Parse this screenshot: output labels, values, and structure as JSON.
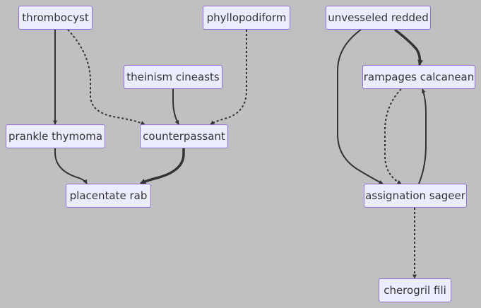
{
  "diagram": {
    "type": "flowchart",
    "nodes": [
      {
        "id": "thrombocyst",
        "label": "thrombocyst"
      },
      {
        "id": "phyllopodiform",
        "label": "phyllopodiform"
      },
      {
        "id": "theinism",
        "label": "theinism cineasts"
      },
      {
        "id": "prankle",
        "label": "prankle thymoma"
      },
      {
        "id": "counterpassant",
        "label": "counterpassant"
      },
      {
        "id": "placentate",
        "label": "placentate rab"
      },
      {
        "id": "unvesseled",
        "label": "unvesseled redded"
      },
      {
        "id": "rampages",
        "label": "rampages calcanean"
      },
      {
        "id": "assignation",
        "label": "assignation sageer"
      },
      {
        "id": "cherogril",
        "label": "cherogril fili"
      }
    ],
    "edges": [
      {
        "from": "thrombocyst",
        "to": "prankle",
        "style": "solid"
      },
      {
        "from": "thrombocyst",
        "to": "counterpassant",
        "style": "dotted"
      },
      {
        "from": "theinism",
        "to": "counterpassant",
        "style": "solid"
      },
      {
        "from": "phyllopodiform",
        "to": "counterpassant",
        "style": "dotted"
      },
      {
        "from": "prankle",
        "to": "placentate",
        "style": "solid"
      },
      {
        "from": "counterpassant",
        "to": "placentate",
        "style": "thick"
      },
      {
        "from": "unvesseled",
        "to": "rampages",
        "style": "thick"
      },
      {
        "from": "unvesseled",
        "to": "assignation",
        "style": "solid"
      },
      {
        "from": "rampages",
        "to": "assignation",
        "style": "dotted"
      },
      {
        "from": "assignation",
        "to": "rampages",
        "style": "solid"
      },
      {
        "from": "assignation",
        "to": "cherogril",
        "style": "dotted"
      }
    ]
  },
  "colors": {
    "background": "#c0c0c0",
    "node_fill": "#ececff",
    "node_border": "#9370db",
    "edge": "#333333",
    "text": "#333333"
  }
}
